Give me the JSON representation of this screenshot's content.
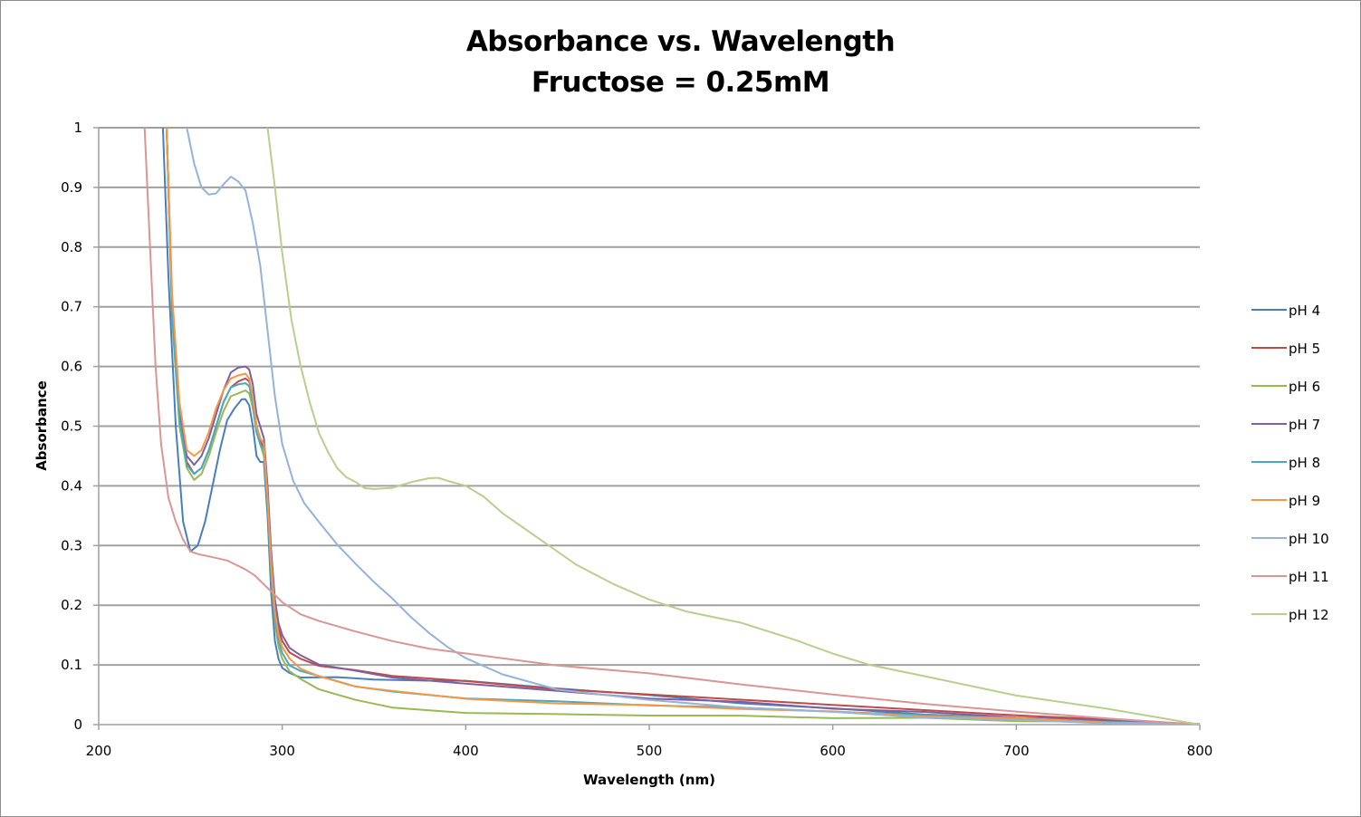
{
  "chart_data": {
    "type": "line",
    "title": "Absorbance vs. Wavelength",
    "subtitle": "Fructose = 0.25mM",
    "xlabel": "Wavelength (nm)",
    "ylabel": "Absorbance",
    "xlim": [
      200,
      800
    ],
    "ylim": [
      0,
      1
    ],
    "xticks": [
      200,
      300,
      400,
      500,
      600,
      700,
      800
    ],
    "yticks": [
      0,
      0.1,
      0.2,
      0.3,
      0.4,
      0.5,
      0.6,
      0.7,
      0.8,
      0.9,
      1
    ],
    "ytick_labels": [
      "0",
      "0.1",
      "0.2",
      "0.3",
      "0.4",
      "0.5",
      "0.6",
      "0.7",
      "0.8",
      "0.9",
      "1"
    ],
    "xtick_labels": [
      "200",
      "300",
      "400",
      "500",
      "600",
      "700",
      "800"
    ],
    "grid": "horizontal",
    "legend_position": "right",
    "series": [
      {
        "name": "pH 4",
        "color": "#4a7ebb",
        "x": [
          235,
          238,
          242,
          246,
          250,
          254,
          258,
          262,
          266,
          270,
          274,
          278,
          280,
          282,
          284,
          286,
          288,
          290,
          292,
          294,
          296,
          298,
          300,
          304,
          310,
          330,
          350,
          380,
          400,
          450,
          500,
          550,
          600,
          650,
          700,
          750,
          800
        ],
        "y": [
          1.0,
          0.75,
          0.5,
          0.34,
          0.29,
          0.3,
          0.34,
          0.4,
          0.46,
          0.51,
          0.53,
          0.545,
          0.545,
          0.535,
          0.5,
          0.45,
          0.44,
          0.44,
          0.35,
          0.22,
          0.14,
          0.11,
          0.095,
          0.085,
          0.08,
          0.078,
          0.077,
          0.075,
          0.072,
          0.062,
          0.048,
          0.037,
          0.026,
          0.018,
          0.01,
          0.005,
          0.0
        ]
      },
      {
        "name": "pH 5",
        "color": "#be4b48",
        "x": [
          237,
          240,
          244,
          248,
          252,
          256,
          260,
          264,
          268,
          272,
          276,
          280,
          282,
          284,
          286,
          288,
          290,
          292,
          294,
          296,
          298,
          300,
          304,
          310,
          320,
          340,
          360,
          400,
          450,
          500,
          550,
          600,
          650,
          700,
          750,
          800
        ],
        "y": [
          1.0,
          0.7,
          0.52,
          0.44,
          0.42,
          0.43,
          0.46,
          0.5,
          0.54,
          0.565,
          0.575,
          0.58,
          0.575,
          0.55,
          0.5,
          0.48,
          0.46,
          0.38,
          0.27,
          0.2,
          0.16,
          0.14,
          0.12,
          0.11,
          0.1,
          0.09,
          0.082,
          0.072,
          0.06,
          0.05,
          0.042,
          0.033,
          0.024,
          0.016,
          0.008,
          0.0
        ]
      },
      {
        "name": "pH 6",
        "color": "#98b954",
        "x": [
          237,
          240,
          244,
          248,
          252,
          256,
          260,
          264,
          268,
          272,
          276,
          280,
          282,
          284,
          286,
          288,
          290,
          292,
          294,
          296,
          298,
          300,
          304,
          310,
          320,
          340,
          360,
          400,
          450,
          500,
          550,
          600,
          650,
          700,
          750,
          800
        ],
        "y": [
          1.0,
          0.68,
          0.5,
          0.43,
          0.41,
          0.42,
          0.45,
          0.49,
          0.525,
          0.55,
          0.555,
          0.56,
          0.555,
          0.53,
          0.49,
          0.47,
          0.45,
          0.37,
          0.25,
          0.17,
          0.13,
          0.11,
          0.09,
          0.075,
          0.06,
          0.04,
          0.03,
          0.02,
          0.017,
          0.016,
          0.014,
          0.012,
          0.01,
          0.007,
          0.004,
          0.0
        ]
      },
      {
        "name": "pH 7",
        "color": "#7d60a0",
        "x": [
          237,
          240,
          244,
          248,
          252,
          256,
          260,
          264,
          268,
          272,
          276,
          280,
          282,
          284,
          286,
          288,
          290,
          292,
          294,
          296,
          298,
          300,
          304,
          310,
          320,
          340,
          360,
          400,
          450,
          500,
          550,
          600,
          650,
          700,
          750,
          800
        ],
        "y": [
          1.0,
          0.7,
          0.52,
          0.45,
          0.435,
          0.45,
          0.48,
          0.52,
          0.56,
          0.59,
          0.598,
          0.6,
          0.595,
          0.57,
          0.52,
          0.5,
          0.48,
          0.4,
          0.29,
          0.21,
          0.17,
          0.15,
          0.13,
          0.115,
          0.1,
          0.09,
          0.08,
          0.07,
          0.055,
          0.045,
          0.037,
          0.028,
          0.02,
          0.013,
          0.006,
          0.0
        ]
      },
      {
        "name": "pH 8",
        "color": "#46aac5",
        "x": [
          237,
          240,
          244,
          248,
          252,
          256,
          260,
          264,
          268,
          272,
          276,
          280,
          282,
          284,
          286,
          288,
          290,
          292,
          294,
          296,
          298,
          300,
          304,
          310,
          320,
          340,
          360,
          400,
          450,
          500,
          550,
          600,
          650,
          700,
          750,
          800
        ],
        "y": [
          1.0,
          0.69,
          0.51,
          0.435,
          0.42,
          0.43,
          0.46,
          0.5,
          0.54,
          0.565,
          0.57,
          0.572,
          0.567,
          0.54,
          0.49,
          0.47,
          0.46,
          0.37,
          0.26,
          0.18,
          0.14,
          0.12,
          0.1,
          0.09,
          0.08,
          0.065,
          0.055,
          0.045,
          0.038,
          0.033,
          0.028,
          0.022,
          0.016,
          0.01,
          0.005,
          0.0
        ]
      },
      {
        "name": "pH 9",
        "color": "#f79646",
        "x": [
          237,
          240,
          244,
          248,
          252,
          256,
          260,
          264,
          268,
          272,
          276,
          280,
          282,
          284,
          286,
          288,
          290,
          292,
          294,
          296,
          298,
          300,
          304,
          310,
          320,
          340,
          360,
          400,
          450,
          500,
          550,
          600,
          650,
          700,
          750,
          800
        ],
        "y": [
          1.0,
          0.72,
          0.54,
          0.46,
          0.45,
          0.46,
          0.49,
          0.53,
          0.56,
          0.58,
          0.585,
          0.588,
          0.58,
          0.55,
          0.5,
          0.48,
          0.47,
          0.38,
          0.27,
          0.19,
          0.15,
          0.13,
          0.11,
          0.095,
          0.08,
          0.065,
          0.055,
          0.043,
          0.036,
          0.032,
          0.027,
          0.021,
          0.015,
          0.01,
          0.005,
          0.0
        ]
      },
      {
        "name": "pH 10",
        "color": "#95b3d7",
        "x": [
          248,
          252,
          256,
          260,
          264,
          268,
          272,
          276,
          280,
          284,
          288,
          292,
          296,
          300,
          306,
          312,
          320,
          330,
          340,
          350,
          360,
          370,
          380,
          390,
          400,
          420,
          450,
          500,
          550,
          600,
          650,
          700,
          750,
          800
        ],
        "y": [
          1.0,
          0.94,
          0.9,
          0.888,
          0.89,
          0.905,
          0.918,
          0.91,
          0.895,
          0.84,
          0.77,
          0.66,
          0.55,
          0.47,
          0.41,
          0.37,
          0.34,
          0.3,
          0.27,
          0.24,
          0.21,
          0.18,
          0.155,
          0.13,
          0.11,
          0.085,
          0.06,
          0.04,
          0.03,
          0.02,
          0.013,
          0.007,
          0.003,
          0.0
        ]
      },
      {
        "name": "pH 11",
        "color": "#d99694",
        "x": [
          225,
          228,
          231,
          234,
          238,
          242,
          246,
          250,
          255,
          260,
          270,
          280,
          285,
          290,
          295,
          300,
          310,
          320,
          340,
          360,
          380,
          400,
          450,
          500,
          550,
          600,
          650,
          700,
          750,
          800
        ],
        "y": [
          1.0,
          0.8,
          0.6,
          0.47,
          0.38,
          0.34,
          0.31,
          0.29,
          0.285,
          0.282,
          0.275,
          0.26,
          0.25,
          0.235,
          0.22,
          0.205,
          0.185,
          0.175,
          0.155,
          0.14,
          0.128,
          0.118,
          0.1,
          0.085,
          0.068,
          0.05,
          0.035,
          0.022,
          0.01,
          0.0
        ]
      },
      {
        "name": "pH 12",
        "color": "#b8cf8e",
        "x": [
          292,
          296,
          300,
          305,
          310,
          315,
          320,
          325,
          330,
          335,
          340,
          345,
          350,
          360,
          370,
          380,
          385,
          390,
          400,
          410,
          420,
          440,
          460,
          480,
          500,
          520,
          550,
          580,
          600,
          620,
          650,
          700,
          750,
          800
        ],
        "y": [
          1.0,
          0.9,
          0.79,
          0.68,
          0.6,
          0.54,
          0.49,
          0.455,
          0.43,
          0.415,
          0.405,
          0.397,
          0.395,
          0.398,
          0.405,
          0.412,
          0.413,
          0.41,
          0.4,
          0.38,
          0.355,
          0.31,
          0.27,
          0.235,
          0.21,
          0.19,
          0.17,
          0.14,
          0.12,
          0.1,
          0.08,
          0.05,
          0.025,
          0.0
        ]
      }
    ]
  }
}
